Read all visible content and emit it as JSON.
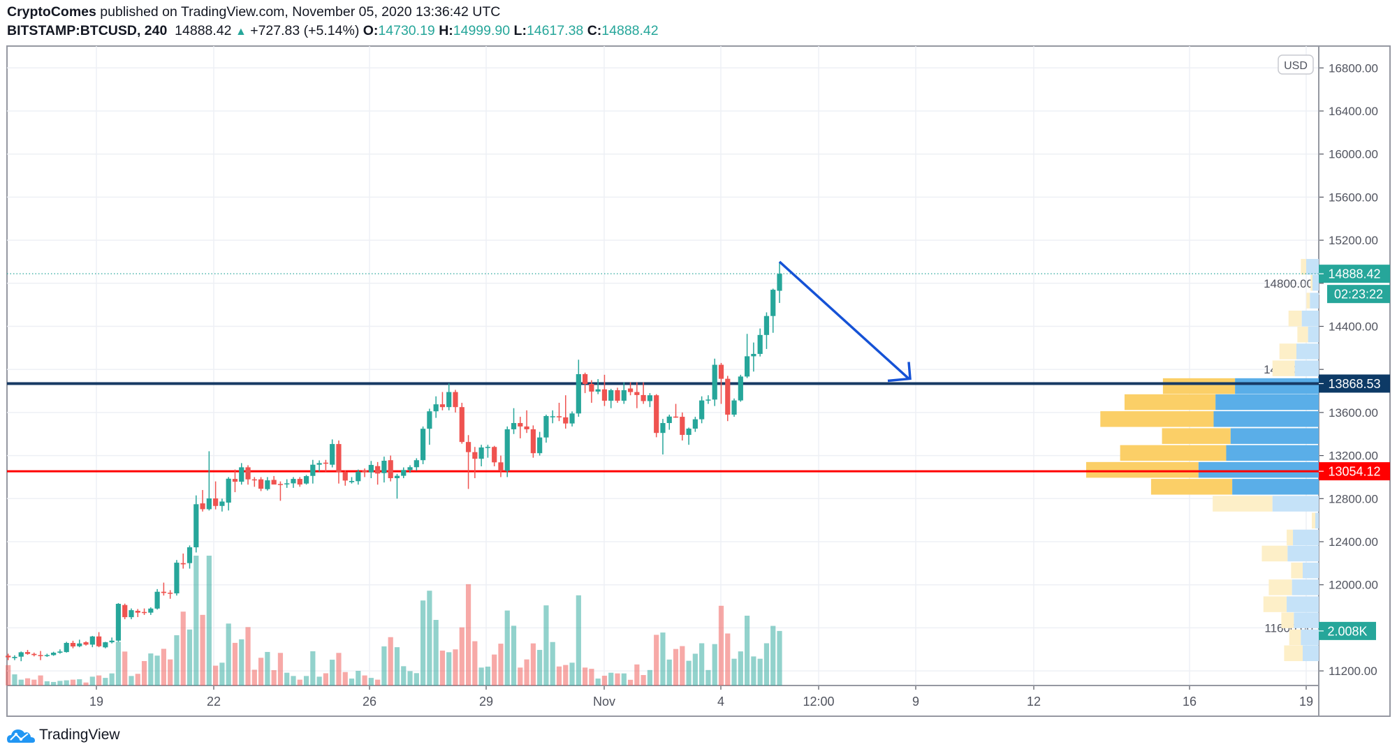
{
  "header": {
    "author": "CryptoComes",
    "published_text": "published on TradingView.com, November 05, 2020 13:36:42 UTC",
    "symbol": "BITSTAMP:BTCUSD, 240",
    "last_price": "14888.42",
    "change": "+727.83 (+5.14%)",
    "o_label": "O:",
    "o_value": "14730.19",
    "h_label": "H:",
    "h_value": "14999.90",
    "l_label": "L:",
    "l_value": "14617.38",
    "c_label": "C:",
    "c_value": "14888.42"
  },
  "footer": {
    "brand": "TradingView"
  },
  "colors": {
    "up": "#26a69a",
    "down": "#ef5350",
    "resistance": "#173a64",
    "support": "#ff0000",
    "arrow": "#1552d6"
  },
  "chart_data": {
    "type": "candlestick",
    "interval": "240",
    "currency_badge": "USD",
    "y_ticks": [
      "16800.00",
      "16400.00",
      "16000.00",
      "15600.00",
      "15200.00",
      "14800.00",
      "14400.00",
      "14000.00",
      "13600.00",
      "13200.00",
      "12800.00",
      "12400.00",
      "12000.00",
      "11600.00",
      "11200.00"
    ],
    "x_ticks": [
      "19",
      "22",
      "26",
      "29",
      "Nov",
      "4",
      "12:00",
      "9",
      "12",
      "16",
      "19"
    ],
    "grid": true,
    "candle_fields": [
      "open",
      "high",
      "low",
      "close",
      "volume"
    ],
    "candles": [
      [
        11341,
        11360,
        11300,
        11326,
        750
      ],
      [
        11319,
        11345,
        11300,
        11330,
        410
      ],
      [
        11332,
        11380,
        11290,
        11373,
        215
      ],
      [
        11375,
        11395,
        11350,
        11358,
        265
      ],
      [
        11358,
        11370,
        11335,
        11347,
        215
      ],
      [
        11347,
        11385,
        11300,
        11341,
        370
      ],
      [
        11341,
        11360,
        11330,
        11347,
        155
      ],
      [
        11347,
        11378,
        11340,
        11369,
        130
      ],
      [
        11369,
        11400,
        11360,
        11380,
        170
      ],
      [
        11375,
        11470,
        11370,
        11460,
        190
      ],
      [
        11460,
        11480,
        11410,
        11427,
        215
      ],
      [
        11429,
        11490,
        11420,
        11455,
        230
      ],
      [
        11466,
        11475,
        11435,
        11444,
        110
      ],
      [
        11444,
        11525,
        11420,
        11520,
        325
      ],
      [
        11520,
        11560,
        11420,
        11429,
        370
      ],
      [
        11419,
        11470,
        11410,
        11466,
        280
      ],
      [
        11466,
        11510,
        11455,
        11481,
        445
      ],
      [
        11481,
        11830,
        11470,
        11823,
        1610
      ],
      [
        11812,
        11825,
        11680,
        11699,
        1250
      ],
      [
        11699,
        11780,
        11680,
        11764,
        350
      ],
      [
        11758,
        11775,
        11700,
        11741,
        430
      ],
      [
        11747,
        11780,
        11720,
        11741,
        900
      ],
      [
        11741,
        11790,
        11720,
        11779,
        1180
      ],
      [
        11779,
        11960,
        11770,
        11935,
        1100
      ],
      [
        11935,
        12020,
        11900,
        11924,
        1350
      ],
      [
        11926,
        11950,
        11870,
        11920,
        960
      ],
      [
        11920,
        12230,
        11900,
        12205,
        1850
      ],
      [
        12201,
        12290,
        12150,
        12190,
        2720
      ],
      [
        12201,
        12365,
        12150,
        12348,
        2060
      ],
      [
        12348,
        12830,
        12300,
        12748,
        4780
      ],
      [
        12756,
        12880,
        12680,
        12702,
        2600
      ],
      [
        12702,
        13240,
        12690,
        12802,
        4780
      ],
      [
        12802,
        12960,
        12700,
        12732,
        730
      ],
      [
        12732,
        12800,
        12680,
        12773,
        840
      ],
      [
        12763,
        13000,
        12690,
        12985,
        2280
      ],
      [
        12983,
        13070,
        12860,
        12957,
        1570
      ],
      [
        12957,
        13130,
        12930,
        13091,
        1700
      ],
      [
        13091,
        13110,
        12930,
        12979,
        2150
      ],
      [
        12979,
        13000,
        12910,
        12974,
        580
      ],
      [
        12979,
        13000,
        12870,
        12892,
        1020
      ],
      [
        12888,
        13000,
        12875,
        12970,
        1235
      ],
      [
        12974,
        13010,
        12940,
        12931,
        565
      ],
      [
        12936,
        12960,
        12780,
        12931,
        1200
      ],
      [
        12938,
        12980,
        12900,
        12942,
        470
      ],
      [
        12942,
        13000,
        12900,
        12983,
        350
      ],
      [
        12983,
        13000,
        12910,
        12931,
        215
      ],
      [
        12940,
        13020,
        12930,
        13009,
        350
      ],
      [
        13011,
        13160,
        12940,
        13115,
        1260
      ],
      [
        13115,
        13155,
        13050,
        13130,
        325
      ],
      [
        13134,
        13160,
        13050,
        13126,
        450
      ],
      [
        13115,
        13350,
        13090,
        13307,
        950
      ],
      [
        13307,
        13340,
        12940,
        13044,
        1200
      ],
      [
        13044,
        13060,
        12920,
        12968,
        495
      ],
      [
        12953,
        13000,
        12940,
        12964,
        255
      ],
      [
        12962,
        13070,
        12930,
        13050,
        540
      ],
      [
        13061,
        13080,
        13000,
        13044,
        370
      ],
      [
        13044,
        13150,
        12990,
        13113,
        280
      ],
      [
        13102,
        13140,
        12930,
        13033,
        215
      ],
      [
        13037,
        13190,
        12950,
        13152,
        1440
      ],
      [
        13157,
        13200,
        12960,
        12990,
        1780
      ],
      [
        12990,
        13030,
        12800,
        13012,
        1410
      ],
      [
        13012,
        13090,
        12990,
        13066,
        710
      ],
      [
        13066,
        13110,
        13040,
        13092,
        530
      ],
      [
        13092,
        13175,
        13060,
        13157,
        455
      ],
      [
        13157,
        13470,
        13120,
        13449,
        3130
      ],
      [
        13449,
        13635,
        13300,
        13611,
        3490
      ],
      [
        13611,
        13750,
        13550,
        13676,
        2415
      ],
      [
        13676,
        13790,
        13620,
        13650,
        1285
      ],
      [
        13650,
        13870,
        13620,
        13790,
        1225
      ],
      [
        13790,
        13810,
        13600,
        13650,
        1330
      ],
      [
        13650,
        13690,
        13310,
        13326,
        2140
      ],
      [
        13326,
        13390,
        12890,
        13232,
        3730
      ],
      [
        13232,
        13280,
        12990,
        13170,
        1630
      ],
      [
        13170,
        13300,
        13100,
        13275,
        660
      ],
      [
        13275,
        13300,
        13180,
        13280,
        695
      ],
      [
        13280,
        13290,
        13100,
        13137,
        1140
      ],
      [
        13137,
        13200,
        13000,
        13059,
        1540
      ],
      [
        13059,
        13470,
        13000,
        13444,
        2760
      ],
      [
        13444,
        13640,
        13400,
        13502,
        2200
      ],
      [
        13502,
        13560,
        13360,
        13470,
        660
      ],
      [
        13470,
        13620,
        13410,
        13444,
        960
      ],
      [
        13444,
        13480,
        13180,
        13222,
        1550
      ],
      [
        13222,
        13420,
        13200,
        13368,
        1310
      ],
      [
        13368,
        13580,
        13320,
        13567,
        2950
      ],
      [
        13560,
        13620,
        13500,
        13565,
        1600
      ],
      [
        13565,
        13690,
        13520,
        13555,
        700
      ],
      [
        13555,
        13760,
        13450,
        13498,
        755
      ],
      [
        13498,
        13610,
        13470,
        13591,
        840
      ],
      [
        13591,
        14090,
        13560,
        13956,
        3320
      ],
      [
        13956,
        13970,
        13780,
        13865,
        660
      ],
      [
        13865,
        13900,
        13690,
        13794,
        615
      ],
      [
        13794,
        13910,
        13770,
        13815,
        255
      ],
      [
        13815,
        13950,
        13660,
        13709,
        360
      ],
      [
        13709,
        13820,
        13640,
        13807,
        470
      ],
      [
        13807,
        13830,
        13690,
        13709,
        445
      ],
      [
        13709,
        13880,
        13680,
        13807,
        445
      ],
      [
        13823,
        13880,
        13760,
        13790,
        210
      ],
      [
        13790,
        13880,
        13640,
        13762,
        775
      ],
      [
        13762,
        13880,
        13680,
        13706,
        385
      ],
      [
        13706,
        13780,
        13650,
        13760,
        570
      ],
      [
        13760,
        13770,
        13370,
        13410,
        1865
      ],
      [
        13410,
        13540,
        13210,
        13502,
        1950
      ],
      [
        13502,
        13580,
        13440,
        13562,
        955
      ],
      [
        13562,
        13680,
        13550,
        13560,
        1345
      ],
      [
        13560,
        13600,
        13340,
        13392,
        1450
      ],
      [
        13392,
        13460,
        13300,
        13450,
        910
      ],
      [
        13450,
        13560,
        13420,
        13537,
        1170
      ],
      [
        13537,
        13750,
        13500,
        13712,
        1555
      ],
      [
        13712,
        13760,
        13680,
        13720,
        570
      ],
      [
        13720,
        14100,
        13660,
        14043,
        1525
      ],
      [
        14043,
        14060,
        13680,
        13913,
        2935
      ],
      [
        13913,
        13940,
        13520,
        13580,
        1915
      ],
      [
        13580,
        13730,
        13560,
        13712,
        985
      ],
      [
        13712,
        13950,
        13700,
        13934,
        1255
      ],
      [
        13934,
        14330,
        13920,
        14122,
        2570
      ],
      [
        14122,
        14250,
        13980,
        14144,
        1070
      ],
      [
        14144,
        14380,
        14120,
        14320,
        985
      ],
      [
        14320,
        14530,
        14190,
        14496,
        1555
      ],
      [
        14496,
        14750,
        14340,
        14740,
        2195
      ],
      [
        14730.19,
        14999.9,
        14617.38,
        14888.42,
        2008
      ]
    ],
    "volume_profile": {
      "value_area": [
        12830,
        13925
      ],
      "rows": [
        {
          "price": 14953,
          "up": 5.4,
          "down": 2.3
        },
        {
          "price": 14804,
          "up": 2.7,
          "down": 0.8
        },
        {
          "price": 14639,
          "up": 3.8,
          "down": 1.5
        },
        {
          "price": 14473,
          "up": 7.3,
          "down": 5.7
        },
        {
          "price": 14324,
          "up": 4.6,
          "down": 4.6
        },
        {
          "price": 14167,
          "up": 9.6,
          "down": 7.3
        },
        {
          "price": 14010,
          "up": 10.3,
          "down": 9.6
        },
        {
          "price": 13845,
          "up": 36,
          "down": 31
        },
        {
          "price": 13696,
          "up": 44.4,
          "down": 39.1
        },
        {
          "price": 13539,
          "up": 45.2,
          "down": 48.7
        },
        {
          "price": 13381,
          "up": 37.9,
          "down": 29.5
        },
        {
          "price": 13224,
          "up": 39.8,
          "down": 45.6
        },
        {
          "price": 13067,
          "up": 51.7,
          "down": 48.3
        },
        {
          "price": 12910,
          "up": 37.2,
          "down": 34.9
        },
        {
          "price": 12753,
          "up": 19.9,
          "down": 25.7
        },
        {
          "price": 12596,
          "up": 1.5,
          "down": 1.5
        },
        {
          "price": 12439,
          "up": 11.1,
          "down": 2.7
        },
        {
          "price": 12290,
          "up": 13.4,
          "down": 11.1
        },
        {
          "price": 12133,
          "up": 6.9,
          "down": 5
        },
        {
          "price": 11976,
          "up": 11.5,
          "down": 10
        },
        {
          "price": 11819,
          "up": 13.8,
          "down": 10
        },
        {
          "price": 11670,
          "up": 10.7,
          "down": 5.4
        },
        {
          "price": 11512,
          "up": 7.7,
          "down": 5
        },
        {
          "price": 11364,
          "up": 6.9,
          "down": 8
        }
      ]
    },
    "horizontal_lines": [
      {
        "price": 13868.53,
        "label": "13868.53",
        "color": "#173a64"
      },
      {
        "price": 13054.12,
        "label": "13054.12",
        "color": "#ff0000"
      }
    ],
    "last_price_label": "14888.42",
    "countdown_label": "02:23:22",
    "volume_label": "2.008K",
    "arrow": {
      "from_price": 14999.9,
      "to_price": 13868.53
    }
  }
}
